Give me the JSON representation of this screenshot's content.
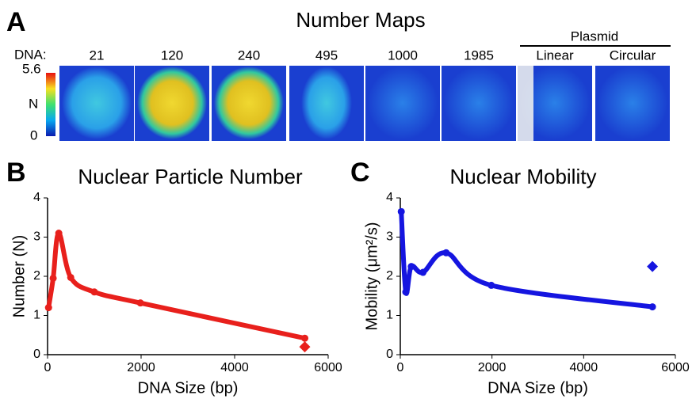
{
  "panel_a": {
    "label": "A",
    "title": "Number Maps",
    "row_label": "DNA:",
    "sizes": [
      "21",
      "120",
      "240",
      "495",
      "1000",
      "1985"
    ],
    "group_label": "Plasmid",
    "plasmid": [
      "Linear",
      "Circular"
    ],
    "colorbar": {
      "max": "5.6",
      "label": "N",
      "min": "0"
    }
  },
  "chart_data": [
    {
      "type": "line",
      "panel": "B",
      "title": "Nuclear Particle Number",
      "x_label": "DNA Size (bp)",
      "y_label": "Number (N)",
      "xlim": [
        0,
        6000
      ],
      "xticks": [
        0,
        2000,
        4000,
        6000
      ],
      "ylim": [
        0,
        4
      ],
      "yticks": [
        0,
        1,
        2,
        3,
        4
      ],
      "series": [
        {
          "color": "#e8201c",
          "marker": "circle",
          "x": [
            21,
            120,
            240,
            495,
            1000,
            1985,
            5500
          ],
          "values": [
            1.2,
            1.95,
            3.1,
            1.97,
            1.6,
            1.32,
            0.42
          ]
        },
        {
          "color": "#e8201c",
          "marker": "diamond",
          "x": [
            5500
          ],
          "values": [
            0.2
          ]
        }
      ]
    },
    {
      "type": "line",
      "panel": "C",
      "title": "Nuclear Mobility",
      "x_label": "DNA Size (bp)",
      "y_label": "Mobility (μm²/s)",
      "xlim": [
        0,
        6000
      ],
      "xticks": [
        0,
        2000,
        4000,
        6000
      ],
      "ylim": [
        0,
        4
      ],
      "yticks": [
        0,
        1,
        2,
        3,
        4
      ],
      "series": [
        {
          "color": "#1515e0",
          "marker": "circle",
          "x": [
            21,
            120,
            240,
            495,
            1000,
            1985,
            5500
          ],
          "values": [
            3.65,
            1.6,
            2.25,
            2.1,
            2.6,
            1.77,
            1.22
          ]
        },
        {
          "color": "#1515e0",
          "marker": "diamond",
          "x": [
            5500
          ],
          "values": [
            2.25
          ]
        }
      ]
    }
  ]
}
